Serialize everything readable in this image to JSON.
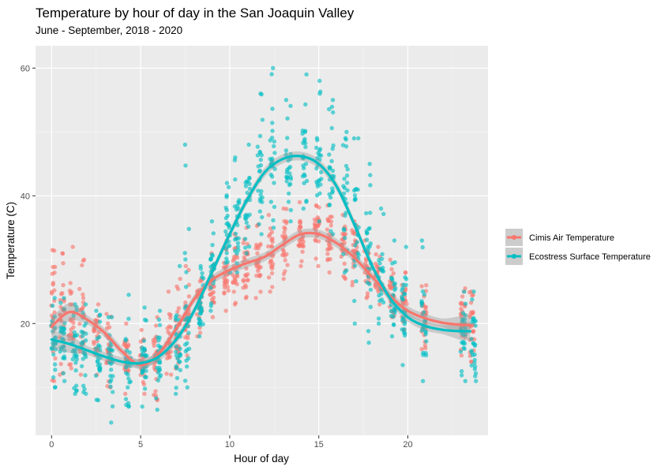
{
  "chart_data": {
    "type": "scatter",
    "title": "Temperature by hour of day in the San Joaquin Valley",
    "subtitle": "June - September, 2018 - 2020",
    "xlabel": "Hour of day",
    "ylabel": "Temperature (C)",
    "xlim": [
      -0.9,
      24.5
    ],
    "ylim": [
      2.5,
      63.5
    ],
    "x_ticks": [
      0,
      5,
      10,
      15,
      20
    ],
    "y_ticks": [
      20,
      40,
      60
    ],
    "grid": true,
    "legend_position": "right",
    "series": [
      {
        "name": "Cimis Air Temperature",
        "color": "#F8766D",
        "smooth": {
          "x": [
            0,
            1,
            2,
            3,
            4,
            5,
            6,
            7,
            8,
            9,
            10,
            11,
            12,
            13,
            14,
            15,
            16,
            17,
            18,
            19,
            20,
            21,
            22,
            23,
            23.5
          ],
          "y": [
            19.5,
            21.8,
            20.6,
            18.5,
            15.5,
            13.5,
            15.2,
            19.2,
            23.8,
            26.8,
            28.4,
            29.5,
            30.5,
            32.4,
            34.0,
            34.0,
            32.6,
            30.3,
            27.3,
            24.3,
            22.0,
            20.8,
            20.1,
            19.8,
            19.8
          ]
        },
        "clusters": [
          {
            "x": 0.1,
            "min": 11,
            "max": 31.5,
            "center": 22
          },
          {
            "x": 0.6,
            "min": 12,
            "max": 31,
            "center": 22
          },
          {
            "x": 1.1,
            "min": 13,
            "max": 32,
            "center": 21
          },
          {
            "x": 1.7,
            "min": 12,
            "max": 30,
            "center": 20
          },
          {
            "x": 2.5,
            "min": 12,
            "max": 23,
            "center": 18
          },
          {
            "x": 3.2,
            "min": 10,
            "max": 21.5,
            "center": 16
          },
          {
            "x": 4.2,
            "min": 9,
            "max": 20,
            "center": 15
          },
          {
            "x": 5.1,
            "min": 9,
            "max": 19,
            "center": 14
          },
          {
            "x": 5.8,
            "min": 8,
            "max": 21,
            "center": 14.5
          },
          {
            "x": 6.6,
            "min": 12,
            "max": 25,
            "center": 17
          },
          {
            "x": 7.1,
            "min": 13,
            "max": 27,
            "center": 19
          },
          {
            "x": 7.6,
            "min": 15,
            "max": 29,
            "center": 21
          },
          {
            "x": 8.3,
            "min": 18,
            "max": 27,
            "center": 23
          },
          {
            "x": 9.0,
            "min": 21,
            "max": 31,
            "center": 25.5
          },
          {
            "x": 9.8,
            "min": 22,
            "max": 33,
            "center": 27
          },
          {
            "x": 10.3,
            "min": 23,
            "max": 34,
            "center": 28.5
          },
          {
            "x": 10.9,
            "min": 24,
            "max": 35,
            "center": 29
          },
          {
            "x": 11.6,
            "min": 24,
            "max": 35.5,
            "center": 30
          },
          {
            "x": 12.3,
            "min": 25,
            "max": 37,
            "center": 31
          },
          {
            "x": 13.1,
            "min": 27,
            "max": 38,
            "center": 32.5
          },
          {
            "x": 14.0,
            "min": 29,
            "max": 39,
            "center": 34
          },
          {
            "x": 14.9,
            "min": 29,
            "max": 38.5,
            "center": 34.5
          },
          {
            "x": 15.6,
            "min": 28,
            "max": 38.5,
            "center": 34
          },
          {
            "x": 16.4,
            "min": 27,
            "max": 37,
            "center": 33
          },
          {
            "x": 17.0,
            "min": 26,
            "max": 36,
            "center": 31
          },
          {
            "x": 17.7,
            "min": 24,
            "max": 33,
            "center": 29
          },
          {
            "x": 18.3,
            "min": 23,
            "max": 32,
            "center": 27
          },
          {
            "x": 19.1,
            "min": 21,
            "max": 30,
            "center": 25
          },
          {
            "x": 19.8,
            "min": 19,
            "max": 28,
            "center": 23
          },
          {
            "x": 20.9,
            "min": 16,
            "max": 26,
            "center": 21
          },
          {
            "x": 23.1,
            "min": 15,
            "max": 25.5,
            "center": 20
          },
          {
            "x": 23.6,
            "min": 14,
            "max": 25,
            "center": 19.5
          }
        ]
      },
      {
        "name": "Ecostress Surface Temperature",
        "color": "#00BFC4",
        "smooth": {
          "x": [
            0,
            1,
            2,
            3,
            4,
            5,
            6,
            7,
            8,
            9,
            10,
            11,
            12,
            13,
            14,
            15,
            16,
            17,
            18,
            19,
            20,
            21,
            22,
            23,
            23.5
          ],
          "y": [
            17.5,
            16.8,
            15.8,
            14.8,
            14.0,
            13.8,
            14.8,
            17.5,
            22.0,
            28.0,
            34.0,
            39.5,
            43.8,
            45.8,
            46.2,
            45.0,
            41.5,
            35.5,
            29.0,
            24.0,
            21.0,
            19.6,
            19.0,
            18.8,
            18.8
          ]
        },
        "clusters": [
          {
            "x": 0.1,
            "min": 10,
            "max": 24,
            "center": 17.5
          },
          {
            "x": 0.6,
            "min": 11,
            "max": 24,
            "center": 17
          },
          {
            "x": 1.3,
            "min": 9,
            "max": 23,
            "center": 16.5
          },
          {
            "x": 1.8,
            "min": 9,
            "max": 23,
            "center": 16
          },
          {
            "x": 2.6,
            "min": 8,
            "max": 22,
            "center": 15
          },
          {
            "x": 3.3,
            "min": 4.5,
            "max": 21,
            "center": 14
          },
          {
            "x": 4.3,
            "min": 7,
            "max": 24.5,
            "center": 14
          },
          {
            "x": 5.2,
            "min": 7,
            "max": 22.5,
            "center": 14
          },
          {
            "x": 6.0,
            "min": 6.5,
            "max": 22,
            "center": 14.5
          },
          {
            "x": 7.1,
            "min": 9,
            "max": 29,
            "center": 17
          },
          {
            "x": 7.6,
            "min": 10,
            "max": 48,
            "center": 19
          },
          {
            "x": 8.4,
            "min": 18,
            "max": 29,
            "center": 22
          },
          {
            "x": 9.0,
            "min": 22,
            "max": 36,
            "center": 28
          },
          {
            "x": 9.9,
            "min": 28,
            "max": 42,
            "center": 34
          },
          {
            "x": 10.4,
            "min": 28,
            "max": 46,
            "center": 35
          },
          {
            "x": 11.0,
            "min": 31,
            "max": 48,
            "center": 39
          },
          {
            "x": 11.7,
            "min": 34,
            "max": 56,
            "center": 42
          },
          {
            "x": 12.4,
            "min": 35,
            "max": 60,
            "center": 44
          },
          {
            "x": 13.3,
            "min": 36,
            "max": 55,
            "center": 45.5
          },
          {
            "x": 14.2,
            "min": 38,
            "max": 59,
            "center": 46
          },
          {
            "x": 15.0,
            "min": 36,
            "max": 58,
            "center": 45
          },
          {
            "x": 15.7,
            "min": 34,
            "max": 55,
            "center": 43
          },
          {
            "x": 16.5,
            "min": 28,
            "max": 50,
            "center": 40
          },
          {
            "x": 17.1,
            "min": 20,
            "max": 49,
            "center": 35
          },
          {
            "x": 17.8,
            "min": 17,
            "max": 45,
            "center": 30
          },
          {
            "x": 18.5,
            "min": 20,
            "max": 38,
            "center": 27
          },
          {
            "x": 19.2,
            "min": 18,
            "max": 33,
            "center": 24
          },
          {
            "x": 19.8,
            "min": 13.5,
            "max": 32,
            "center": 22
          },
          {
            "x": 20.9,
            "min": 11,
            "max": 33,
            "center": 20
          },
          {
            "x": 23.1,
            "min": 11,
            "max": 25,
            "center": 18.5
          },
          {
            "x": 23.7,
            "min": 11,
            "max": 25,
            "center": 18
          }
        ]
      }
    ]
  }
}
